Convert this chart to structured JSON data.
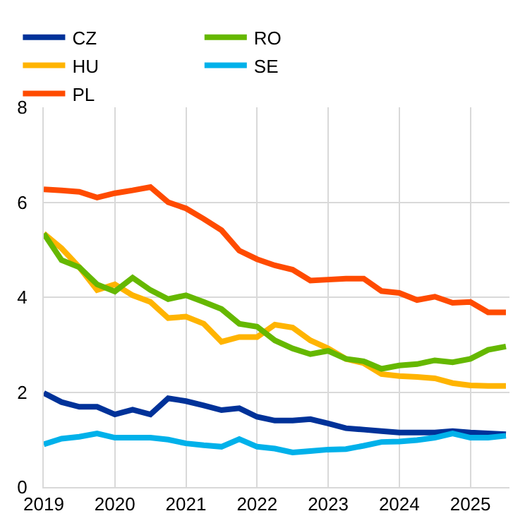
{
  "chart_data": {
    "type": "line",
    "x": [
      2019,
      2019.25,
      2019.5,
      2019.75,
      2020,
      2020.25,
      2020.5,
      2020.75,
      2021,
      2021.25,
      2021.5,
      2021.75,
      2022,
      2022.25,
      2022.5,
      2022.75,
      2023,
      2023.25,
      2023.5,
      2023.75,
      2024,
      2024.25,
      2024.5,
      2024.75,
      2025,
      2025.25,
      2025.5
    ],
    "series": [
      {
        "name": "CZ",
        "color": "#003299",
        "values": [
          1.98,
          1.79,
          1.69,
          1.69,
          1.53,
          1.63,
          1.53,
          1.87,
          1.81,
          1.72,
          1.62,
          1.66,
          1.48,
          1.4,
          1.4,
          1.43,
          1.34,
          1.24,
          1.21,
          1.18,
          1.15,
          1.15,
          1.15,
          1.18,
          1.15,
          1.13,
          1.11
        ]
      },
      {
        "name": "HU",
        "color": "#ffb400",
        "values": [
          5.34,
          5.03,
          4.63,
          4.15,
          4.27,
          4.04,
          3.9,
          3.56,
          3.59,
          3.44,
          3.06,
          3.16,
          3.16,
          3.42,
          3.36,
          3.09,
          2.92,
          2.7,
          2.61,
          2.38,
          2.34,
          2.32,
          2.29,
          2.19,
          2.14,
          2.13,
          2.13
        ]
      },
      {
        "name": "PL",
        "color": "#ff4b00",
        "values": [
          6.27,
          6.25,
          6.22,
          6.1,
          6.19,
          6.25,
          6.32,
          6,
          5.87,
          5.65,
          5.41,
          4.98,
          4.8,
          4.67,
          4.58,
          4.35,
          4.37,
          4.39,
          4.39,
          4.13,
          4.09,
          3.94,
          4.01,
          3.88,
          3.9,
          3.68,
          3.68
        ]
      },
      {
        "name": "RO",
        "color": "#65b800",
        "values": [
          5.34,
          4.78,
          4.63,
          4.27,
          4.12,
          4.41,
          4.15,
          3.96,
          4.04,
          3.9,
          3.75,
          3.44,
          3.38,
          3.09,
          2.92,
          2.8,
          2.87,
          2.7,
          2.65,
          2.49,
          2.56,
          2.59,
          2.67,
          2.63,
          2.7,
          2.89,
          2.96
        ]
      },
      {
        "name": "SE",
        "color": "#00b1ea",
        "values": [
          0.9,
          1.02,
          1.06,
          1.13,
          1.04,
          1.04,
          1.04,
          1,
          0.92,
          0.88,
          0.85,
          1.01,
          0.85,
          0.81,
          0.73,
          0.76,
          0.79,
          0.8,
          0.87,
          0.95,
          0.96,
          0.99,
          1.04,
          1.13,
          1.04,
          1.04,
          1.08
        ]
      }
    ],
    "xlim": [
      2019,
      2025.55
    ],
    "xticks": [
      2019,
      2020,
      2021,
      2022,
      2023,
      2024,
      2025
    ],
    "ylim": [
      0,
      8
    ],
    "yticks": [
      0,
      2,
      4,
      6,
      8
    ],
    "grid": true,
    "legend": "top left",
    "marker": "none",
    "line_style": "solid"
  }
}
